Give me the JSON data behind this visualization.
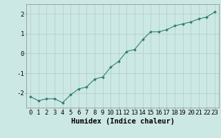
{
  "x": [
    0,
    1,
    2,
    3,
    4,
    5,
    6,
    7,
    8,
    9,
    10,
    11,
    12,
    13,
    14,
    15,
    16,
    17,
    18,
    19,
    20,
    21,
    22,
    23
  ],
  "y": [
    -2.2,
    -2.4,
    -2.3,
    -2.3,
    -2.5,
    -2.1,
    -1.8,
    -1.7,
    -1.3,
    -1.2,
    -0.7,
    -0.4,
    0.1,
    0.2,
    0.7,
    1.1,
    1.1,
    1.2,
    1.4,
    1.5,
    1.6,
    1.75,
    1.85,
    2.1
  ],
  "line_color": "#2e7d72",
  "marker": "D",
  "marker_size": 2.0,
  "bg_color": "#cce8e4",
  "grid_color": "#b0cbc8",
  "xlabel": "Humidex (Indice chaleur)",
  "xlabel_fontsize": 7.5,
  "tick_fontsize": 6.5,
  "ylim": [
    -2.75,
    2.5
  ],
  "xlim": [
    -0.5,
    23.5
  ],
  "yticks": [
    -2,
    -1,
    0,
    1,
    2
  ],
  "xticks": [
    0,
    1,
    2,
    3,
    4,
    5,
    6,
    7,
    8,
    9,
    10,
    11,
    12,
    13,
    14,
    15,
    16,
    17,
    18,
    19,
    20,
    21,
    22,
    23
  ]
}
